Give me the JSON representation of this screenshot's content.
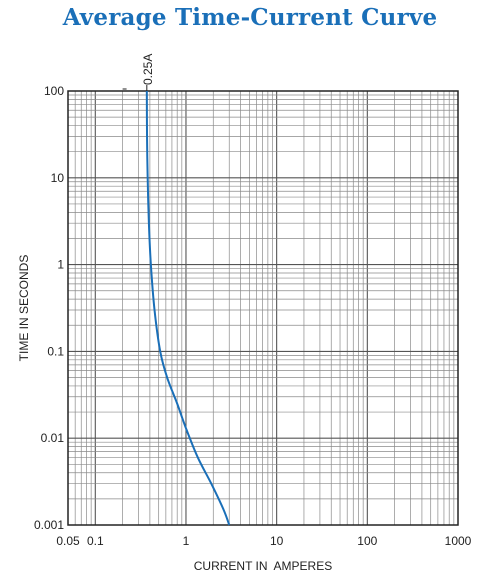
{
  "chart_data": {
    "type": "line",
    "title": "Average Time-Current Curve",
    "xlabel": "CURRENT IN  AMPERES",
    "ylabel": "TIME IN SECONDS",
    "xscale": "log",
    "yscale": "log",
    "xlim": [
      0.05,
      1000
    ],
    "ylim": [
      0.001,
      100
    ],
    "xticks": [
      0.05,
      0.1,
      1,
      10,
      100,
      1000
    ],
    "xtick_labels": [
      "0.05",
      "0.1",
      "1",
      "10",
      "100",
      "1000"
    ],
    "yticks": [
      0.001,
      0.01,
      0.1,
      1,
      10,
      100
    ],
    "ytick_labels": [
      "0.001",
      "0.01",
      "0.1",
      "1",
      "10",
      "100"
    ],
    "grid": true,
    "series": [
      {
        "name": "0.25A",
        "color": "#1a6fb8",
        "x": [
          0.37,
          0.372,
          0.378,
          0.39,
          0.41,
          0.45,
          0.52,
          0.62,
          0.8,
          1.0,
          1.35,
          1.9,
          2.6,
          3.0
        ],
        "y": [
          100,
          30,
          10,
          3,
          1,
          0.3,
          0.1,
          0.05,
          0.025,
          0.013,
          0.006,
          0.003,
          0.0015,
          0.001
        ]
      }
    ]
  }
}
